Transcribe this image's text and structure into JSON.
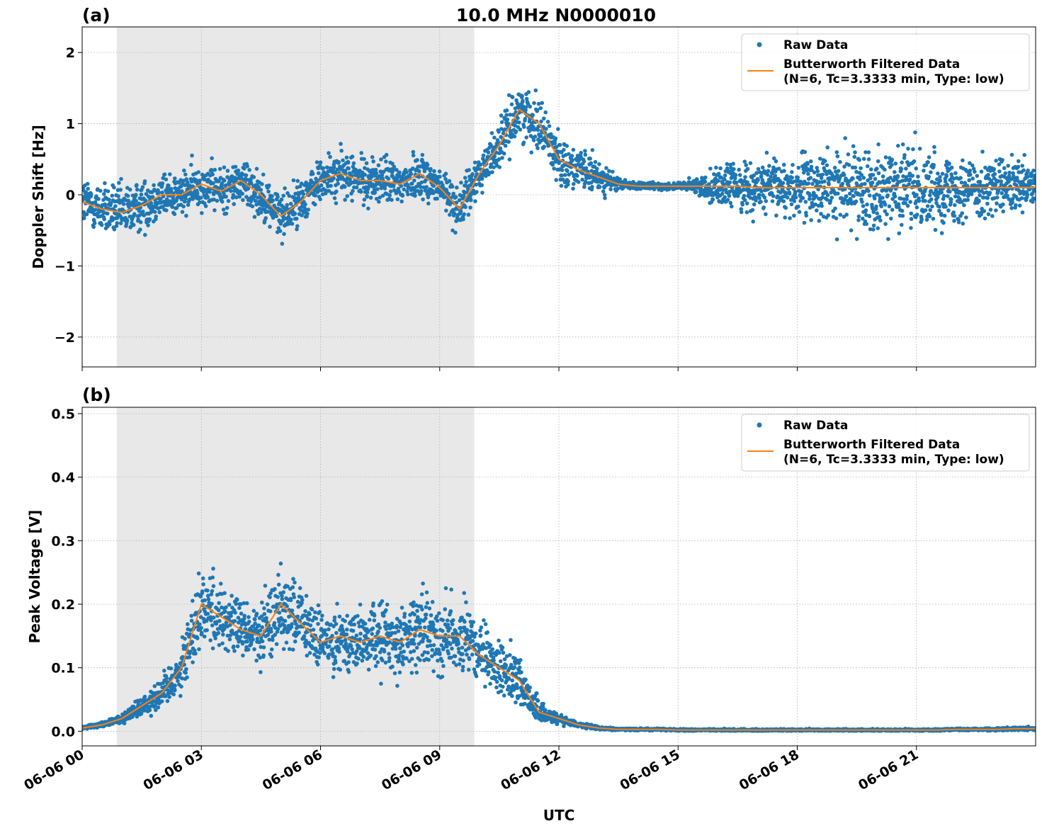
{
  "title": "10.0 MHz N0000010",
  "xlabel": "UTC",
  "chart_data": [
    {
      "panel_label": "(a)",
      "type": "scatter+line",
      "ylabel": "Doppler Shift [Hz]",
      "xlim_hours": [
        0,
        24
      ],
      "ylim": [
        -2.42,
        2.36
      ],
      "yticks": [
        2,
        1,
        0,
        -1,
        -2
      ],
      "ytick_labels": [
        "2",
        "1",
        "0",
        "−1",
        "−2"
      ],
      "shaded_interval_hours": [
        0.87,
        9.87
      ],
      "grid": true,
      "legend_position": "top-right",
      "legend": [
        "Raw Data",
        "Butterworth Filtered Data",
        "(N=6, Tc=3.3333 min, Type: low)"
      ],
      "filtered_times_hours": [
        0,
        0.5,
        1,
        1.5,
        2,
        2.5,
        3,
        3.5,
        4,
        4.5,
        5,
        5.5,
        6,
        6.5,
        7,
        7.5,
        8,
        8.5,
        9,
        9.5,
        10,
        10.5,
        11,
        11.5,
        12,
        12.5,
        13,
        13.5,
        14,
        14.5,
        15,
        15.5,
        16,
        16.5,
        17,
        17.5,
        18,
        18.5,
        19,
        19.5,
        20,
        20.5,
        21,
        21.5,
        22,
        22.5,
        23,
        23.5,
        24
      ],
      "filtered_values": [
        -0.1,
        -0.2,
        -0.25,
        -0.15,
        0.0,
        0.0,
        0.15,
        0.05,
        0.2,
        0.0,
        -0.3,
        -0.1,
        0.2,
        0.3,
        0.2,
        0.2,
        0.15,
        0.3,
        0.1,
        -0.2,
        0.3,
        0.7,
        1.2,
        1.0,
        0.5,
        0.35,
        0.25,
        0.15,
        0.12,
        0.12,
        0.12,
        0.12,
        0.12,
        0.12,
        0.1,
        0.1,
        0.1,
        0.1,
        0.1,
        0.1,
        0.1,
        0.1,
        0.1,
        0.1,
        0.1,
        0.1,
        0.1,
        0.1,
        0.1
      ],
      "raw_spread": [
        0.45,
        0.45,
        0.45,
        0.45,
        0.4,
        0.4,
        0.4,
        0.4,
        0.4,
        0.4,
        0.4,
        0.4,
        0.4,
        0.4,
        0.4,
        0.4,
        0.4,
        0.4,
        0.4,
        0.4,
        0.35,
        0.4,
        0.45,
        0.45,
        0.4,
        0.35,
        0.3,
        0.1,
        0.06,
        0.06,
        0.06,
        0.15,
        0.35,
        0.4,
        0.45,
        0.5,
        0.55,
        0.6,
        0.65,
        0.65,
        0.7,
        0.7,
        0.7,
        0.65,
        0.6,
        0.55,
        0.5,
        0.45,
        0.45
      ]
    },
    {
      "panel_label": "(b)",
      "type": "scatter+line",
      "ylabel": "Peak Voltage [V]",
      "xlim_hours": [
        0,
        24
      ],
      "ylim": [
        -0.023,
        0.51
      ],
      "yticks": [
        0.5,
        0.4,
        0.3,
        0.2,
        0.1,
        0.0
      ],
      "ytick_labels": [
        "0.5",
        "0.4",
        "0.3",
        "0.2",
        "0.1",
        "0.0"
      ],
      "shaded_interval_hours": [
        0.87,
        9.87
      ],
      "grid": true,
      "legend_position": "top-right",
      "legend": [
        "Raw Data",
        "Butterworth Filtered Data",
        "(N=6, Tc=3.3333 min, Type: low)"
      ],
      "filtered_times_hours": [
        0,
        0.5,
        1,
        1.5,
        2,
        2.5,
        3,
        3.5,
        4,
        4.5,
        5,
        5.5,
        6,
        6.5,
        7,
        7.5,
        8,
        8.5,
        9,
        9.5,
        10,
        10.5,
        11,
        11.5,
        12,
        12.5,
        13,
        13.5,
        14,
        14.5,
        15,
        15.5,
        16,
        16.5,
        17,
        17.5,
        18,
        18.5,
        19,
        19.5,
        20,
        20.5,
        21,
        21.5,
        22,
        22.5,
        23,
        23.5,
        24
      ],
      "filtered_values": [
        0.005,
        0.01,
        0.02,
        0.04,
        0.06,
        0.1,
        0.2,
        0.18,
        0.16,
        0.15,
        0.2,
        0.17,
        0.14,
        0.15,
        0.14,
        0.15,
        0.14,
        0.16,
        0.15,
        0.15,
        0.12,
        0.1,
        0.08,
        0.03,
        0.02,
        0.01,
        0.005,
        0.003,
        0.003,
        0.003,
        0.002,
        0.002,
        0.002,
        0.002,
        0.002,
        0.002,
        0.002,
        0.002,
        0.002,
        0.002,
        0.002,
        0.002,
        0.002,
        0.002,
        0.003,
        0.003,
        0.003,
        0.004,
        0.004
      ],
      "raw_spread": [
        0.003,
        0.005,
        0.01,
        0.02,
        0.03,
        0.05,
        0.08,
        0.07,
        0.06,
        0.06,
        0.08,
        0.07,
        0.06,
        0.06,
        0.06,
        0.07,
        0.07,
        0.07,
        0.07,
        0.08,
        0.06,
        0.05,
        0.05,
        0.02,
        0.01,
        0.005,
        0.003,
        0.002,
        0.002,
        0.002,
        0.002,
        0.002,
        0.002,
        0.002,
        0.002,
        0.002,
        0.002,
        0.002,
        0.002,
        0.002,
        0.002,
        0.002,
        0.002,
        0.002,
        0.002,
        0.002,
        0.003,
        0.003,
        0.003
      ]
    }
  ],
  "xtick_labels": [
    "06-06 00",
    "06-06 03",
    "06-06 06",
    "06-06 09",
    "06-06 12",
    "06-06 15",
    "06-06 18",
    "06-06 21"
  ],
  "xtick_hours": [
    0,
    3,
    6,
    9,
    12,
    15,
    18,
    21
  ],
  "colors": {
    "raw": "#1f77b4",
    "filtered": "#ff7f0e",
    "shade": "#e8e8e8"
  }
}
